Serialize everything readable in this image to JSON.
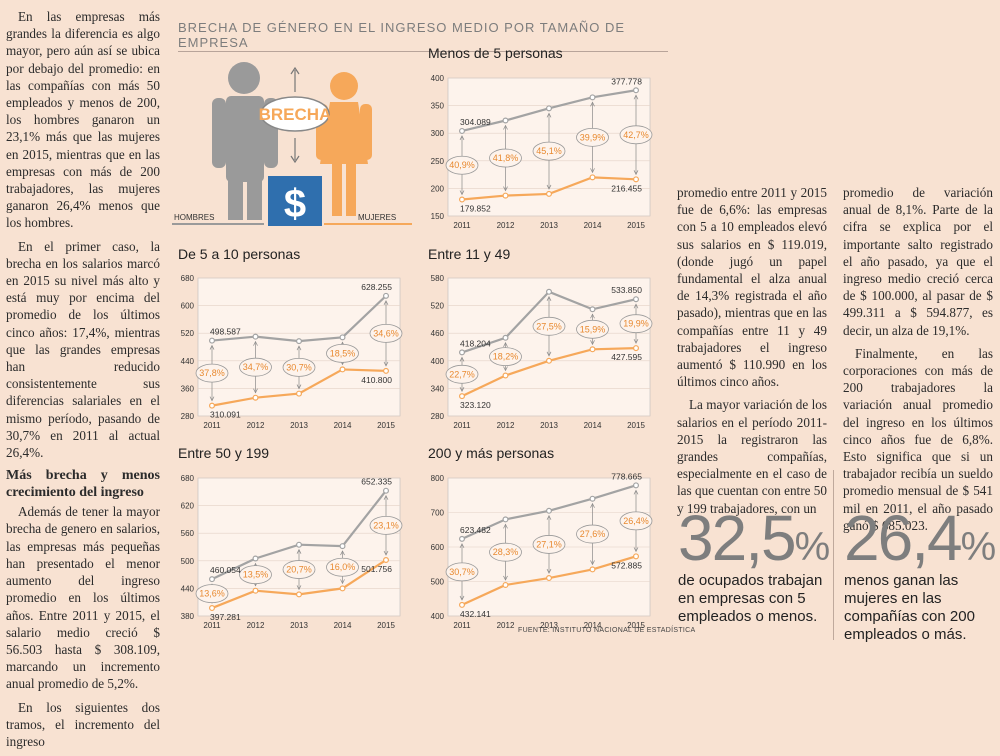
{
  "header": "BRECHA DE GÉNERO EN EL INGRESO MEDIO POR TAMAÑO DE EMPRESA",
  "icon": {
    "brecha": "BRECHA",
    "hombres": "HOMBRES",
    "mujeres": "MUJERES",
    "dollar": "$"
  },
  "source": "FUENTE: INSTITUTO NACIONAL DE ESTADÍSTICA",
  "col1": {
    "p1": "En las empresas más grandes la diferencia es algo mayor, pero aún así se ubica por debajo del promedio: en las compañías con más 50 empleados y menos de 200, los hombres ganaron un 23,1% más que las mujeres en 2015, mientras que en las empresas con más de 200 trabajadores, las mujeres ganaron 26,4% menos que los hombres.",
    "p2": "En el primer caso, la brecha en los salarios marcó en 2015 su nivel más alto y está muy por encima del promedio de los últimos cinco años: 17,4%, mientras que las grandes empresas han reducido consistentemente sus diferencias salariales en el mismo período, pasando de 30,7% en 2011 al actual 26,4%.",
    "heading": "Más brecha y menos crecimiento del ingreso",
    "p3": "Además de tener la mayor brecha de genero en salarios, las empresas más pequeñas han presentado el menor aumento del ingreso promedio en los últimos años. Entre 2011 y 2015, el salario medio creció $ 56.503 hasta $ 308.109, marcando un incremento anual promedio de 5,2%.",
    "p4": "En los siguientes dos tramos, el incremento del ingreso"
  },
  "col3": {
    "p1": "promedio entre 2011 y 2015 fue de 6,6%: las empresas con 5 a 10 empleados elevó sus salarios en $ 119.019, (donde jugó un papel fundamental el alza anual de 14,3% registrada el año pasado), mientras que en las compañías entre 11 y 49 trabajadores el ingreso aumentó $ 110.990 en los últimos cinco años.",
    "p2": "La mayor variación de los salarios en el período 2011-2015 la registraron las grandes compañías, especialmente en el caso de las que cuentan con entre 50 y 199 trabajadores, con un"
  },
  "col4": {
    "p1": "promedio de variación anual de 8,1%. Parte de la cifra se explica por el importante salto registrado el año pasado, ya que el ingreso medio creció cerca de $ 100.000, al pasar de $ 499.311 a $ 594.877, es decir, un alza de 19,1%.",
    "p2": "Finalmente, en las corporaciones con más de 200 trabajadores la variación anual promedio del ingreso en los últimos cinco años fue de 6,8%. Esto significa que si un trabajador recibía un sueldo promedio mensual de $ 541 mil en 2011, el año pasado ganó $ 685.023."
  },
  "stats": [
    {
      "number": "32,5",
      "pct": "%",
      "text": "de ocupados trabajan en empresas con 5 empleados o menos."
    },
    {
      "number": "26,4",
      "pct": "%",
      "text": "menos ganan las mujeres en las compañías con 200 empleados o más."
    }
  ],
  "colors": {
    "men": "#a3a3a3",
    "women": "#f6a85a",
    "bg": "#f8e2d2",
    "plot": "#fdf3ec"
  },
  "chart_data": [
    {
      "type": "line",
      "title": "Menos de 5 personas",
      "categories": [
        "2011",
        "2012",
        "2013",
        "2014",
        "2015"
      ],
      "ylim": [
        150,
        400
      ],
      "yticks": [
        150,
        200,
        250,
        300,
        350,
        400
      ],
      "series": [
        {
          "name": "HOMBRES",
          "values": [
            304089,
            323000,
            345000,
            365000,
            377778
          ]
        },
        {
          "name": "MUJERES",
          "values": [
            179852,
            187000,
            190000,
            220000,
            216455
          ]
        }
      ],
      "annotations": [
        "40,9%",
        "41,8%",
        "45,1%",
        "39,9%",
        "42,7%"
      ],
      "labels": {
        "first_men": "304.089",
        "last_men": "377.778",
        "first_women": "179.852",
        "last_women": "216.455"
      }
    },
    {
      "type": "line",
      "title": "De 5 a 10 personas",
      "categories": [
        "2011",
        "2012",
        "2013",
        "2014",
        "2015"
      ],
      "ylim": [
        280,
        680
      ],
      "yticks": [
        280,
        360,
        440,
        520,
        600,
        680
      ],
      "series": [
        {
          "name": "HOMBRES",
          "values": [
            498587,
            510000,
            497000,
            508000,
            628255
          ]
        },
        {
          "name": "MUJERES",
          "values": [
            310091,
            333000,
            345000,
            415000,
            410800
          ]
        }
      ],
      "annotations": [
        "37,8%",
        "34,7%",
        "30,7%",
        "18,5%",
        "34,6%"
      ],
      "labels": {
        "first_men": "498.587",
        "last_men": "628.255",
        "first_women": "310.091",
        "last_women": "410.800"
      }
    },
    {
      "type": "line",
      "title": "Entre 11 y 49",
      "categories": [
        "2011",
        "2012",
        "2013",
        "2014",
        "2015"
      ],
      "ylim": [
        280,
        580
      ],
      "yticks": [
        280,
        340,
        400,
        460,
        520,
        580
      ],
      "series": [
        {
          "name": "HOMBRES",
          "values": [
            418204,
            450000,
            550000,
            512000,
            533850
          ]
        },
        {
          "name": "MUJERES",
          "values": [
            323120,
            368000,
            400000,
            425000,
            427595
          ]
        }
      ],
      "annotations": [
        "22,7%",
        "18,2%",
        "27,5%",
        "15,9%",
        "19,9%"
      ],
      "labels": {
        "first_men": "418.204",
        "last_men": "533.850",
        "first_women": "323.120",
        "last_women": "427.595"
      }
    },
    {
      "type": "line",
      "title": "Entre 50 y 199",
      "categories": [
        "2011",
        "2012",
        "2013",
        "2014",
        "2015"
      ],
      "ylim": [
        380,
        680
      ],
      "yticks": [
        380,
        440,
        500,
        560,
        620,
        680
      ],
      "series": [
        {
          "name": "HOMBRES",
          "values": [
            460054,
            505000,
            535000,
            532000,
            652335
          ]
        },
        {
          "name": "MUJERES",
          "values": [
            397281,
            435000,
            427000,
            440000,
            501756
          ]
        }
      ],
      "annotations": [
        "13,6%",
        "13,5%",
        "20,7%",
        "16,0%",
        "23,1%"
      ],
      "labels": {
        "first_men": "460.054",
        "last_men": "652.335",
        "first_women": "397.281",
        "last_women": "501.756"
      }
    },
    {
      "type": "line",
      "title": "200 y más personas",
      "categories": [
        "2011",
        "2012",
        "2013",
        "2014",
        "2015"
      ],
      "ylim": [
        400,
        800
      ],
      "yticks": [
        400,
        500,
        600,
        700,
        800
      ],
      "series": [
        {
          "name": "HOMBRES",
          "values": [
            623482,
            680000,
            705000,
            740000,
            778665
          ]
        },
        {
          "name": "MUJERES",
          "values": [
            432141,
            490000,
            510000,
            535000,
            572885
          ]
        }
      ],
      "annotations": [
        "30,7%",
        "28,3%",
        "27,1%",
        "27,6%",
        "26,4%"
      ],
      "labels": {
        "first_men": "623.482",
        "last_men": "778.665",
        "first_women": "432.141",
        "last_women": "572.885"
      }
    }
  ]
}
